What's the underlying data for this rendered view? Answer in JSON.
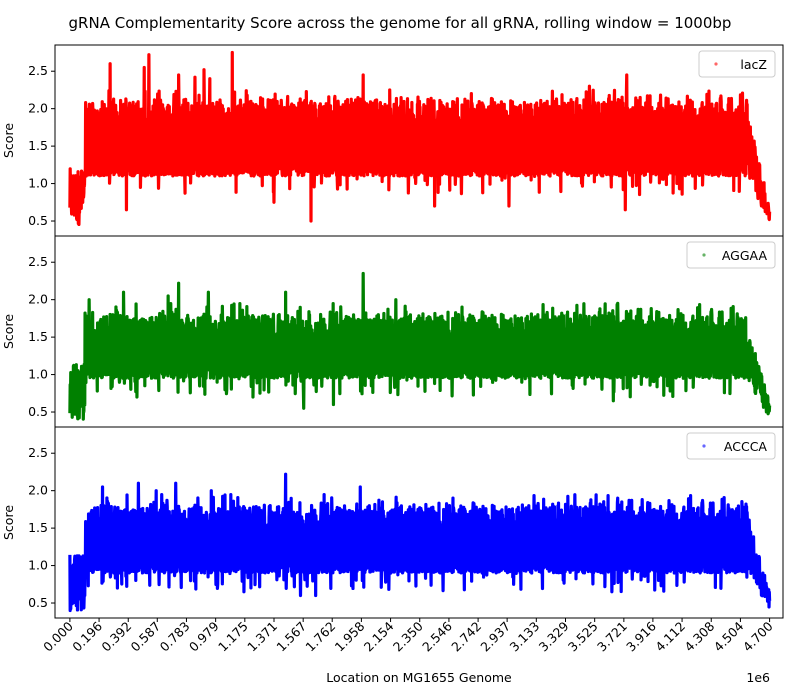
{
  "chart_data": {
    "type": "line",
    "title": "gRNA Complementarity Score across the genome for all gRNA, rolling window = 1000bp",
    "xlabel": "Location on MG1655 Genome",
    "x_offset_label": "1e6",
    "x_ticks": [
      "0.000",
      "0.196",
      "0.392",
      "0.587",
      "0.783",
      "0.979",
      "1.175",
      "1.371",
      "1.567",
      "1.762",
      "1.958",
      "2.154",
      "2.350",
      "2.546",
      "2.742",
      "2.937",
      "3.133",
      "3.329",
      "3.525",
      "3.721",
      "3.916",
      "4.112",
      "4.308",
      "4.504",
      "4.700"
    ],
    "xlim": [
      -0.1,
      4.79
    ],
    "shared_x": true,
    "legend_location": "upper right",
    "panels": [
      {
        "ylabel": "Score",
        "ylim": [
          0.3,
          2.85
        ],
        "yticks": [
          "0.5",
          "1.0",
          "1.5",
          "2.0",
          "2.5"
        ],
        "series": [
          {
            "name": "lacZ",
            "color": "#ff0000",
            "x_range": [
              0.0,
              4.7
            ],
            "band_center": 1.55,
            "band_low": 1.1,
            "band_high": 2.0,
            "min": 0.3,
            "max": 2.75,
            "spikes": [
              {
                "x": 0.27,
                "y": 2.6
              },
              {
                "x": 0.5,
                "y": 2.55
              },
              {
                "x": 0.53,
                "y": 2.72
              },
              {
                "x": 0.73,
                "y": 2.45
              },
              {
                "x": 0.84,
                "y": 2.42
              },
              {
                "x": 0.9,
                "y": 2.52
              },
              {
                "x": 0.94,
                "y": 2.4
              },
              {
                "x": 1.09,
                "y": 2.75
              },
              {
                "x": 1.97,
                "y": 2.45
              },
              {
                "x": 3.49,
                "y": 2.3
              },
              {
                "x": 3.74,
                "y": 2.45
              }
            ],
            "dips": [
              {
                "x": 0.38,
                "y": 0.65
              },
              {
                "x": 1.62,
                "y": 0.5
              },
              {
                "x": 1.37,
                "y": 0.75
              },
              {
                "x": 2.45,
                "y": 0.7
              },
              {
                "x": 2.95,
                "y": 0.7
              },
              {
                "x": 3.73,
                "y": 0.65
              }
            ],
            "edge_low": 0.45
          }
        ]
      },
      {
        "ylabel": "Score",
        "ylim": [
          0.3,
          2.85
        ],
        "yticks": [
          "0.5",
          "1.0",
          "1.5",
          "2.0",
          "2.5"
        ],
        "series": [
          {
            "name": "AGGAA",
            "color": "#008000",
            "x_range": [
              0.0,
              4.7
            ],
            "band_center": 1.32,
            "band_low": 0.95,
            "band_high": 1.7,
            "min": 0.3,
            "max": 2.35,
            "spikes": [
              {
                "x": 0.13,
                "y": 2.0
              },
              {
                "x": 0.36,
                "y": 2.1
              },
              {
                "x": 0.45,
                "y": 2.1
              },
              {
                "x": 0.66,
                "y": 2.05
              },
              {
                "x": 0.73,
                "y": 2.22
              },
              {
                "x": 0.93,
                "y": 2.1
              },
              {
                "x": 1.45,
                "y": 2.1
              },
              {
                "x": 1.97,
                "y": 2.35
              },
              {
                "x": 2.19,
                "y": 2.0
              },
              {
                "x": 3.68,
                "y": 1.95
              }
            ],
            "dips": [
              {
                "x": 0.45,
                "y": 0.7
              },
              {
                "x": 1.57,
                "y": 0.55
              },
              {
                "x": 1.77,
                "y": 0.6
              },
              {
                "x": 3.65,
                "y": 0.65
              },
              {
                "x": 1.23,
                "y": 0.7
              }
            ],
            "edge_low": 0.4
          }
        ]
      },
      {
        "ylabel": "Score",
        "ylim": [
          0.3,
          2.85
        ],
        "yticks": [
          "0.5",
          "1.0",
          "1.5",
          "2.0",
          "2.5"
        ],
        "series": [
          {
            "name": "ACCCA",
            "color": "#0000ff",
            "x_range": [
              0.0,
              4.7
            ],
            "band_center": 1.3,
            "band_low": 0.9,
            "band_high": 1.7,
            "min": 0.3,
            "max": 2.22,
            "spikes": [
              {
                "x": 0.22,
                "y": 2.05
              },
              {
                "x": 0.32,
                "y": 2.08
              },
              {
                "x": 0.46,
                "y": 2.1
              },
              {
                "x": 0.58,
                "y": 2.0
              },
              {
                "x": 0.71,
                "y": 2.1
              },
              {
                "x": 0.95,
                "y": 2.0
              },
              {
                "x": 1.45,
                "y": 2.22
              },
              {
                "x": 1.95,
                "y": 2.05
              },
              {
                "x": 2.1,
                "y": 1.85
              },
              {
                "x": 3.68,
                "y": 1.9
              }
            ],
            "dips": [
              {
                "x": 0.32,
                "y": 0.7
              },
              {
                "x": 1.55,
                "y": 0.6
              },
              {
                "x": 1.65,
                "y": 0.6
              },
              {
                "x": 3.64,
                "y": 0.65
              },
              {
                "x": 2.98,
                "y": 0.75
              }
            ],
            "edge_low": 0.4
          }
        ]
      }
    ]
  }
}
